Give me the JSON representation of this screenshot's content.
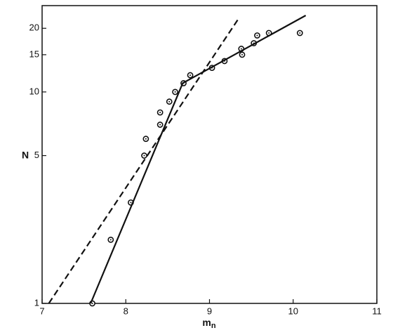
{
  "chart_data": {
    "type": "scatter",
    "log_y": true,
    "x_label": {
      "main": "m",
      "sub": "n"
    },
    "y_label": "N",
    "xlim": [
      7,
      11
    ],
    "ylim": [
      1,
      25.6
    ],
    "xticks": [
      7,
      8,
      9,
      10,
      11
    ],
    "yticks": [
      1,
      5,
      10,
      15,
      20
    ],
    "color": "#111111",
    "series": [
      {
        "type": "scatter",
        "x": [
          7.6,
          7.82,
          8.06,
          8.22,
          8.24,
          8.41,
          8.41,
          8.52,
          8.59,
          8.69,
          8.77,
          9.03,
          9.18,
          9.38,
          9.39,
          9.53,
          9.57,
          9.71,
          10.08
        ],
        "values": [
          1,
          2,
          3,
          5,
          6,
          8,
          7,
          9,
          10,
          11,
          12,
          13,
          14,
          16,
          15,
          17,
          18.5,
          19,
          19
        ]
      },
      {
        "type": "line",
        "style": "solid",
        "x": [
          7.58,
          8.68,
          10.15
        ],
        "values": [
          1,
          11,
          23
        ]
      },
      {
        "type": "line",
        "style": "dashed",
        "x": [
          7.08,
          9.34
        ],
        "values": [
          1,
          22
        ]
      }
    ]
  }
}
